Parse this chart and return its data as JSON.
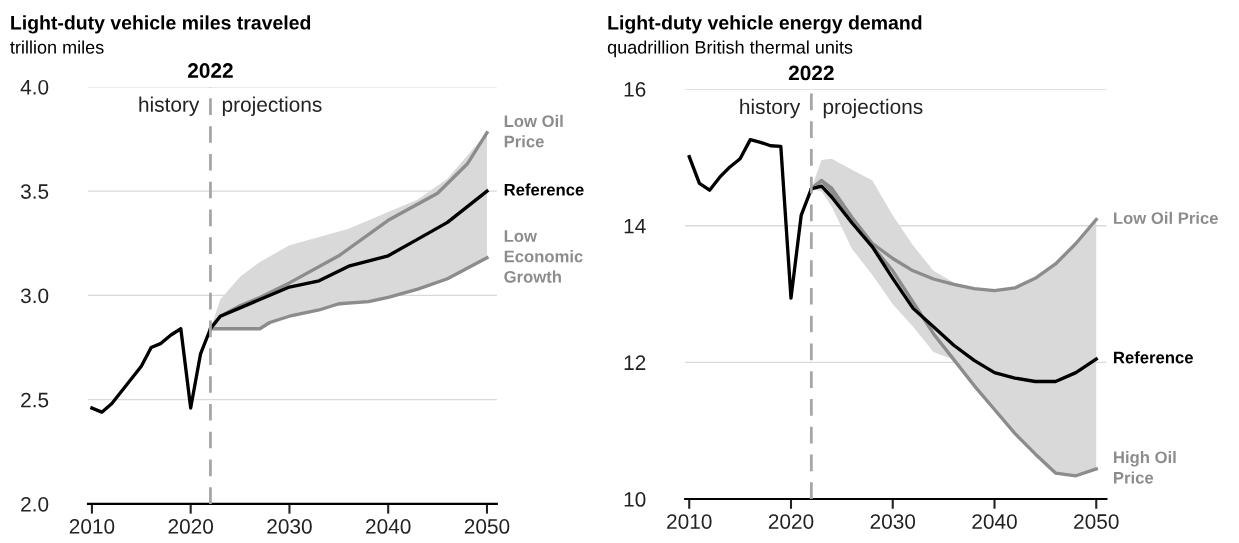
{
  "chart_data": [
    {
      "type": "line",
      "title": "Light-duty vehicle miles traveled",
      "subtitle": "trillion miles",
      "series": [
        {
          "name": "Reference",
          "color": "#000000",
          "x": [
            2010,
            2011,
            2012,
            2013,
            2014,
            2015,
            2016,
            2017,
            2018,
            2019,
            2020,
            2021,
            2022,
            2023,
            2025,
            2027,
            2030,
            2033,
            2036,
            2040,
            2043,
            2046,
            2050
          ],
          "values": [
            2.46,
            2.44,
            2.48,
            2.54,
            2.6,
            2.66,
            2.75,
            2.77,
            2.81,
            2.84,
            2.46,
            2.72,
            2.84,
            2.9,
            2.94,
            2.98,
            3.04,
            3.07,
            3.14,
            3.19,
            3.27,
            3.35,
            3.5
          ],
          "lower": [
            null,
            null,
            null,
            null,
            null,
            null,
            null,
            null,
            null,
            null,
            null,
            null,
            2.84,
            2.84,
            2.84,
            2.84,
            2.9,
            2.93,
            2.96,
            2.99,
            3.03,
            3.08,
            3.18
          ],
          "upper": [
            null,
            null,
            null,
            null,
            null,
            null,
            null,
            null,
            null,
            null,
            null,
            null,
            2.84,
            2.98,
            3.09,
            3.16,
            3.24,
            3.28,
            3.32,
            3.4,
            3.46,
            3.56,
            3.78
          ]
        },
        {
          "name": "Low Oil\nPrice",
          "color": "#8c8c8c",
          "x": [
            2022,
            2023,
            2025,
            2027,
            2030,
            2035,
            2040,
            2045,
            2048,
            2050
          ],
          "values": [
            2.84,
            2.9,
            2.95,
            2.99,
            3.06,
            3.19,
            3.36,
            3.49,
            3.63,
            3.78
          ]
        },
        {
          "name": "Low\nEconomic\nGrowth",
          "color": "#8c8c8c",
          "x": [
            2022,
            2023,
            2025,
            2027,
            2028,
            2030,
            2033,
            2035,
            2038,
            2040,
            2043,
            2046,
            2048,
            2050
          ],
          "values": [
            2.84,
            2.84,
            2.84,
            2.84,
            2.87,
            2.9,
            2.93,
            2.96,
            2.97,
            2.99,
            3.03,
            3.08,
            3.13,
            3.18
          ]
        }
      ],
      "xlim": [
        2009.6,
        2051
      ],
      "xticks": [
        2010,
        2020,
        2030,
        2040,
        2050
      ],
      "ylim": [
        2,
        4
      ],
      "yticks": [
        {
          "value": 2,
          "label": "2.0"
        },
        2.5,
        {
          "value": 3,
          "label": "3.0"
        },
        3.5,
        {
          "value": 4,
          "label": "4.0"
        }
      ],
      "ref_lines": [
        {
          "axis": "x",
          "value": 2022,
          "label": "2022",
          "color": "#a6a6a6",
          "line_style": "dashed"
        }
      ],
      "annotations": [
        "history",
        "projections"
      ],
      "grid": "y",
      "legend": false
    },
    {
      "type": "line",
      "title": "Light-duty vehicle energy demand",
      "subtitle": "quadrillion British thermal units",
      "series": [
        {
          "name": "Reference",
          "color": "#000000",
          "x": [
            2010,
            2011,
            2012,
            2013,
            2014,
            2015,
            2016,
            2017,
            2018,
            2019,
            2020,
            2021,
            2022,
            2023,
            2024,
            2026,
            2028,
            2030,
            2032,
            2034,
            2036,
            2038,
            2040,
            2042,
            2044,
            2046,
            2048,
            2050
          ],
          "values": [
            15.01,
            14.62,
            14.52,
            14.71,
            14.86,
            14.98,
            15.26,
            15.22,
            15.17,
            15.16,
            12.94,
            14.15,
            14.54,
            14.58,
            14.42,
            14.04,
            13.69,
            13.23,
            12.79,
            12.52,
            12.25,
            12.03,
            11.85,
            11.77,
            11.72,
            11.72,
            11.85,
            12.05
          ],
          "lower": [
            null,
            null,
            null,
            null,
            null,
            null,
            null,
            null,
            null,
            null,
            null,
            null,
            14.54,
            14.5,
            14.28,
            13.66,
            13.28,
            12.85,
            12.52,
            12.15,
            12.04,
            11.66,
            11.31,
            10.96,
            10.66,
            10.38,
            10.34,
            10.44
          ],
          "upper": [
            null,
            null,
            null,
            null,
            null,
            null,
            null,
            null,
            null,
            null,
            null,
            null,
            14.54,
            14.96,
            14.98,
            14.82,
            14.66,
            14.15,
            13.71,
            13.34,
            13.17,
            13.08,
            13.05,
            13.09,
            13.23,
            13.44,
            13.74,
            14.09
          ]
        },
        {
          "name": "Low Oil Price",
          "color": "#8c8c8c",
          "x": [
            2022,
            2023,
            2024,
            2026,
            2028,
            2030,
            2032,
            2034,
            2036,
            2038,
            2040,
            2042,
            2044,
            2046,
            2048,
            2050
          ],
          "values": [
            14.54,
            14.66,
            14.55,
            14.12,
            13.74,
            13.52,
            13.34,
            13.22,
            13.14,
            13.08,
            13.05,
            13.09,
            13.23,
            13.44,
            13.74,
            14.09
          ]
        },
        {
          "name": "High Oil\nPrice",
          "color": "#8c8c8c",
          "x": [
            2022,
            2023,
            2024,
            2026,
            2028,
            2030,
            2032,
            2034,
            2036,
            2038,
            2040,
            2042,
            2044,
            2046,
            2048,
            2050
          ],
          "values": [
            14.54,
            14.66,
            14.5,
            14.1,
            13.7,
            13.34,
            12.88,
            12.42,
            12.04,
            11.66,
            11.31,
            10.96,
            10.66,
            10.38,
            10.34,
            10.44
          ]
        }
      ],
      "xlim": [
        2009.6,
        2051
      ],
      "xticks": [
        2010,
        2020,
        2030,
        2040,
        2050
      ],
      "ylim": [
        10,
        16
      ],
      "yticks": [
        10,
        12,
        14,
        16
      ],
      "ref_lines": [
        {
          "axis": "x",
          "value": 2022,
          "label": "2022",
          "color": "#a6a6a6",
          "line_style": "dashed"
        }
      ],
      "annotations": [
        "history",
        "projections"
      ],
      "grid": "y",
      "legend": false
    }
  ]
}
